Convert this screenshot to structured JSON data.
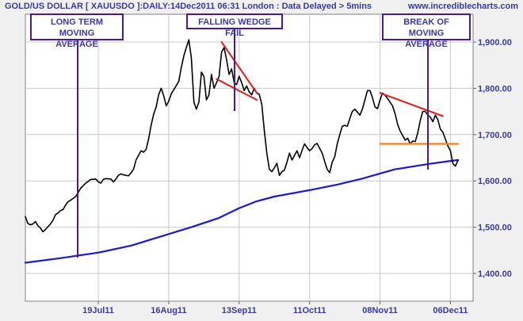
{
  "header": {
    "title": "GOLD/US DOLLAR [ XAUUSDO ]:DAILY:14Dec2011 06:31 London : Data Delayed > 5mins",
    "site": "www.incrediblecharts.com"
  },
  "colors": {
    "background": "#f0f0f0",
    "plot_bg": "#ffffff",
    "grid": "#c8c8c8",
    "price": "#000000",
    "moving_average": "#1a1acc",
    "wedge": "#e02020",
    "support": "#f08020",
    "annotation": "#4b1a8c",
    "text": "#3a3aa0"
  },
  "annotations": [
    {
      "line1": "LONG TERM MOVING",
      "line2": "AVERAGE"
    },
    {
      "line1": "FALLING WEDGE FAIL",
      "line2": ""
    },
    {
      "line1": "BREAK OF MOVING",
      "line2": "AVERAGE"
    }
  ],
  "chart_data": {
    "type": "line",
    "title": "GOLD/US DOLLAR [ XAUUSDO ]:DAILY:14Dec2011 06:31 London : Data Delayed > 5mins",
    "xlabel": "",
    "ylabel": "",
    "x_axis": {
      "range": [
        "2011-06-20",
        "2011-12-15"
      ],
      "ticks": [
        {
          "label": "19Jul11",
          "date": "2011-07-19"
        },
        {
          "label": "16Aug11",
          "date": "2011-08-16"
        },
        {
          "label": "13Sep11",
          "date": "2011-09-13"
        },
        {
          "label": "11Oct11",
          "date": "2011-10-11"
        },
        {
          "label": "08Nov11",
          "date": "2011-11-08"
        },
        {
          "label": "06Dec11",
          "date": "2011-12-06"
        }
      ]
    },
    "y_axis": {
      "range": [
        1340,
        1960
      ],
      "ticks": [
        {
          "label": "1,400.00",
          "value": 1400
        },
        {
          "label": "1,500.00",
          "value": 1500
        },
        {
          "label": "1,600.00",
          "value": 1600
        },
        {
          "label": "1,700.00",
          "value": 1700
        },
        {
          "label": "1,800.00",
          "value": 1800
        },
        {
          "label": "1,900.00",
          "value": 1900
        }
      ]
    },
    "grid": true,
    "legend": "none",
    "series": [
      {
        "role": "price",
        "points": [
          [
            "2011-06-20",
            1523
          ],
          [
            "2011-06-21",
            1508
          ],
          [
            "2011-06-22",
            1505
          ],
          [
            "2011-06-23",
            1507
          ],
          [
            "2011-06-24",
            1512
          ],
          [
            "2011-06-25",
            1503
          ],
          [
            "2011-06-26",
            1498
          ],
          [
            "2011-06-27",
            1490
          ],
          [
            "2011-06-28",
            1495
          ],
          [
            "2011-06-30",
            1507
          ],
          [
            "2011-07-01",
            1515
          ],
          [
            "2011-07-02",
            1527
          ],
          [
            "2011-07-03",
            1531
          ],
          [
            "2011-07-04",
            1536
          ],
          [
            "2011-07-05",
            1538
          ],
          [
            "2011-07-06",
            1548
          ],
          [
            "2011-07-07",
            1555
          ],
          [
            "2011-07-09",
            1562
          ],
          [
            "2011-07-10",
            1566
          ],
          [
            "2011-07-11",
            1575
          ],
          [
            "2011-07-12",
            1584
          ],
          [
            "2011-07-14",
            1595
          ],
          [
            "2011-07-15",
            1599
          ],
          [
            "2011-07-16",
            1603
          ],
          [
            "2011-07-18",
            1604
          ],
          [
            "2011-07-19",
            1598
          ],
          [
            "2011-07-20",
            1595
          ],
          [
            "2011-07-21",
            1603
          ],
          [
            "2011-07-22",
            1605
          ],
          [
            "2011-07-24",
            1604
          ],
          [
            "2011-07-25",
            1598
          ],
          [
            "2011-07-26",
            1604
          ],
          [
            "2011-07-27",
            1612
          ],
          [
            "2011-07-28",
            1615
          ],
          [
            "2011-07-29",
            1613
          ],
          [
            "2011-07-31",
            1611
          ],
          [
            "2011-08-01",
            1617
          ],
          [
            "2011-08-02",
            1625
          ],
          [
            "2011-08-03",
            1645
          ],
          [
            "2011-08-05",
            1665
          ],
          [
            "2011-08-06",
            1662
          ],
          [
            "2011-08-07",
            1668
          ],
          [
            "2011-08-08",
            1690
          ],
          [
            "2011-08-09",
            1720
          ],
          [
            "2011-08-10",
            1744
          ],
          [
            "2011-08-11",
            1760
          ],
          [
            "2011-08-12",
            1786
          ],
          [
            "2011-08-13",
            1800
          ],
          [
            "2011-08-14",
            1784
          ],
          [
            "2011-08-15",
            1762
          ],
          [
            "2011-08-16",
            1772
          ],
          [
            "2011-08-17",
            1788
          ],
          [
            "2011-08-18",
            1797
          ],
          [
            "2011-08-20",
            1815
          ],
          [
            "2011-08-21",
            1845
          ],
          [
            "2011-08-22",
            1870
          ],
          [
            "2011-08-23",
            1888
          ],
          [
            "2011-08-24",
            1905
          ],
          [
            "2011-08-25",
            1865
          ],
          [
            "2011-08-26",
            1770
          ],
          [
            "2011-08-27",
            1755
          ],
          [
            "2011-08-28",
            1770
          ],
          [
            "2011-08-29",
            1835
          ],
          [
            "2011-08-30",
            1825
          ],
          [
            "2011-08-31",
            1775
          ],
          [
            "2011-09-01",
            1786
          ],
          [
            "2011-09-02",
            1830
          ],
          [
            "2011-09-03",
            1800
          ],
          [
            "2011-09-04",
            1812
          ],
          [
            "2011-09-05",
            1825
          ],
          [
            "2011-09-06",
            1878
          ],
          [
            "2011-09-07",
            1888
          ],
          [
            "2011-09-08",
            1862
          ],
          [
            "2011-09-09",
            1830
          ],
          [
            "2011-09-10",
            1842
          ],
          [
            "2011-09-11",
            1812
          ],
          [
            "2011-09-12",
            1808
          ],
          [
            "2011-09-13",
            1826
          ],
          [
            "2011-09-14",
            1812
          ],
          [
            "2011-09-15",
            1795
          ],
          [
            "2011-09-16",
            1805
          ],
          [
            "2011-09-17",
            1792
          ],
          [
            "2011-09-18",
            1786
          ],
          [
            "2011-09-19",
            1800
          ],
          [
            "2011-09-20",
            1790
          ],
          [
            "2011-09-21",
            1787
          ],
          [
            "2011-09-22",
            1765
          ],
          [
            "2011-09-23",
            1710
          ],
          [
            "2011-09-24",
            1660
          ],
          [
            "2011-09-25",
            1625
          ],
          [
            "2011-09-26",
            1620
          ],
          [
            "2011-09-27",
            1628
          ],
          [
            "2011-09-28",
            1638
          ],
          [
            "2011-09-29",
            1612
          ],
          [
            "2011-09-30",
            1620
          ],
          [
            "2011-10-01",
            1623
          ],
          [
            "2011-10-02",
            1640
          ],
          [
            "2011-10-03",
            1660
          ],
          [
            "2011-10-04",
            1645
          ],
          [
            "2011-10-05",
            1655
          ],
          [
            "2011-10-06",
            1665
          ],
          [
            "2011-10-07",
            1650
          ],
          [
            "2011-10-08",
            1666
          ],
          [
            "2011-10-09",
            1680
          ],
          [
            "2011-10-10",
            1672
          ],
          [
            "2011-10-11",
            1665
          ],
          [
            "2011-10-12",
            1670
          ],
          [
            "2011-10-13",
            1678
          ],
          [
            "2011-10-14",
            1681
          ],
          [
            "2011-10-15",
            1670
          ],
          [
            "2011-10-16",
            1660
          ],
          [
            "2011-10-17",
            1642
          ],
          [
            "2011-10-18",
            1625
          ],
          [
            "2011-10-19",
            1618
          ],
          [
            "2011-10-20",
            1640
          ],
          [
            "2011-10-21",
            1652
          ],
          [
            "2011-10-22",
            1680
          ],
          [
            "2011-10-23",
            1700
          ],
          [
            "2011-10-24",
            1718
          ],
          [
            "2011-10-25",
            1720
          ],
          [
            "2011-10-26",
            1718
          ],
          [
            "2011-10-27",
            1735
          ],
          [
            "2011-10-28",
            1750
          ],
          [
            "2011-10-29",
            1755
          ],
          [
            "2011-10-31",
            1742
          ],
          [
            "2011-11-01",
            1755
          ],
          [
            "2011-11-02",
            1775
          ],
          [
            "2011-11-03",
            1795
          ],
          [
            "2011-11-04",
            1795
          ],
          [
            "2011-11-05",
            1780
          ],
          [
            "2011-11-06",
            1760
          ],
          [
            "2011-11-07",
            1756
          ],
          [
            "2011-11-08",
            1775
          ],
          [
            "2011-11-09",
            1790
          ],
          [
            "2011-11-10",
            1785
          ],
          [
            "2011-11-11",
            1778
          ],
          [
            "2011-11-12",
            1770
          ],
          [
            "2011-11-13",
            1762
          ],
          [
            "2011-11-14",
            1745
          ],
          [
            "2011-11-15",
            1722
          ],
          [
            "2011-11-16",
            1708
          ],
          [
            "2011-11-17",
            1698
          ],
          [
            "2011-11-18",
            1688
          ],
          [
            "2011-11-19",
            1692
          ],
          [
            "2011-11-20",
            1680
          ],
          [
            "2011-11-21",
            1686
          ],
          [
            "2011-11-22",
            1685
          ],
          [
            "2011-11-23",
            1704
          ],
          [
            "2011-11-24",
            1730
          ],
          [
            "2011-11-25",
            1750
          ],
          [
            "2011-11-26",
            1750
          ],
          [
            "2011-11-27",
            1742
          ],
          [
            "2011-11-28",
            1738
          ],
          [
            "2011-11-29",
            1728
          ],
          [
            "2011-11-30",
            1742
          ],
          [
            "2011-12-01",
            1732
          ],
          [
            "2011-12-02",
            1712
          ],
          [
            "2011-12-03",
            1705
          ],
          [
            "2011-12-04",
            1690
          ],
          [
            "2011-12-05",
            1675
          ],
          [
            "2011-12-06",
            1665
          ],
          [
            "2011-12-07",
            1637
          ],
          [
            "2011-12-08",
            1632
          ],
          [
            "2011-12-09",
            1645
          ]
        ]
      },
      {
        "role": "moving_average",
        "points": [
          [
            "2011-06-20",
            1423
          ],
          [
            "2011-07-04",
            1433
          ],
          [
            "2011-07-19",
            1445
          ],
          [
            "2011-08-01",
            1460
          ],
          [
            "2011-08-16",
            1485
          ],
          [
            "2011-08-25",
            1500
          ],
          [
            "2011-09-05",
            1520
          ],
          [
            "2011-09-13",
            1541
          ],
          [
            "2011-09-20",
            1556
          ],
          [
            "2011-09-27",
            1566
          ],
          [
            "2011-10-11",
            1580
          ],
          [
            "2011-10-22",
            1592
          ],
          [
            "2011-11-01",
            1605
          ],
          [
            "2011-11-08",
            1616
          ],
          [
            "2011-11-14",
            1625
          ],
          [
            "2011-11-21",
            1631
          ],
          [
            "2011-11-28",
            1637
          ],
          [
            "2011-12-06",
            1643
          ],
          [
            "2011-12-09",
            1645
          ]
        ]
      },
      {
        "role": "wedge_upper",
        "points": [
          [
            "2011-09-06",
            1900
          ],
          [
            "2011-09-20",
            1790
          ]
        ]
      },
      {
        "role": "wedge_lower",
        "points": [
          [
            "2011-09-04",
            1820
          ],
          [
            "2011-09-20",
            1775
          ]
        ]
      },
      {
        "role": "resistance",
        "points": [
          [
            "2011-11-08",
            1790
          ],
          [
            "2011-12-03",
            1740
          ]
        ]
      },
      {
        "role": "support",
        "points": [
          [
            "2011-11-08",
            1680
          ],
          [
            "2011-12-09",
            1680
          ]
        ]
      }
    ]
  }
}
